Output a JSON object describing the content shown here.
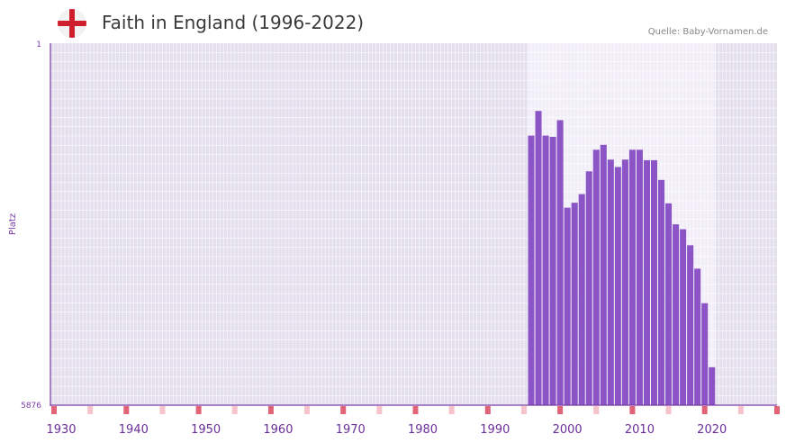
{
  "header": {
    "title": "Faith in England (1996-2022)",
    "source": "Quelle: Baby-Vornamen.de"
  },
  "colors": {
    "bar": "#8b55c6",
    "plot_bg": "#e3dfed",
    "highlight_bg": "#f1eef8",
    "grid": "#ffffff",
    "axis": "#7b3aa8",
    "marker_strong": "#e06377",
    "marker_light": "#f6c2cb",
    "flag_red": "#cf1f2e"
  },
  "chart_data": {
    "type": "bar",
    "title": "Faith in England (1996-2022)",
    "xlabel": "",
    "ylabel": "Platz",
    "y_inverted": true,
    "ylim": [
      1,
      5876
    ],
    "xlim": [
      1928.5,
      2029
    ],
    "highlight_range": [
      1994.5,
      2020.5
    ],
    "x_ticks": [
      1930,
      1940,
      1950,
      1960,
      1970,
      1980,
      1990,
      2000,
      2010,
      2020
    ],
    "x_tick_labels": [
      "1930",
      "1940",
      "1950",
      "1960",
      "1970",
      "1980",
      "1990",
      "2000",
      "2010",
      "2020"
    ],
    "y_tick_labels": [
      "1",
      "5876"
    ],
    "categories": [
      1995,
      1996,
      1997,
      1998,
      1999,
      2000,
      2001,
      2002,
      2003,
      2004,
      2005,
      2006,
      2007,
      2008,
      2009,
      2010,
      2011,
      2012,
      2013,
      2014,
      2015,
      2016,
      2017,
      2018,
      2019,
      2020
    ],
    "values": [
      1500,
      1100,
      1500,
      1520,
      1250,
      2670,
      2590,
      2450,
      2080,
      1730,
      1650,
      1890,
      2010,
      1890,
      1730,
      1730,
      1900,
      1900,
      2220,
      2600,
      2940,
      3020,
      3280,
      3660,
      4220,
      5260
    ],
    "markers": {
      "strong": [
        1929,
        1939,
        1949,
        1959,
        1969,
        1979,
        1989,
        1999,
        2009,
        2019,
        2029
      ],
      "light": [
        1934,
        1944,
        1954,
        1964,
        1974,
        1984,
        1994,
        2004,
        2014,
        2024
      ]
    }
  }
}
